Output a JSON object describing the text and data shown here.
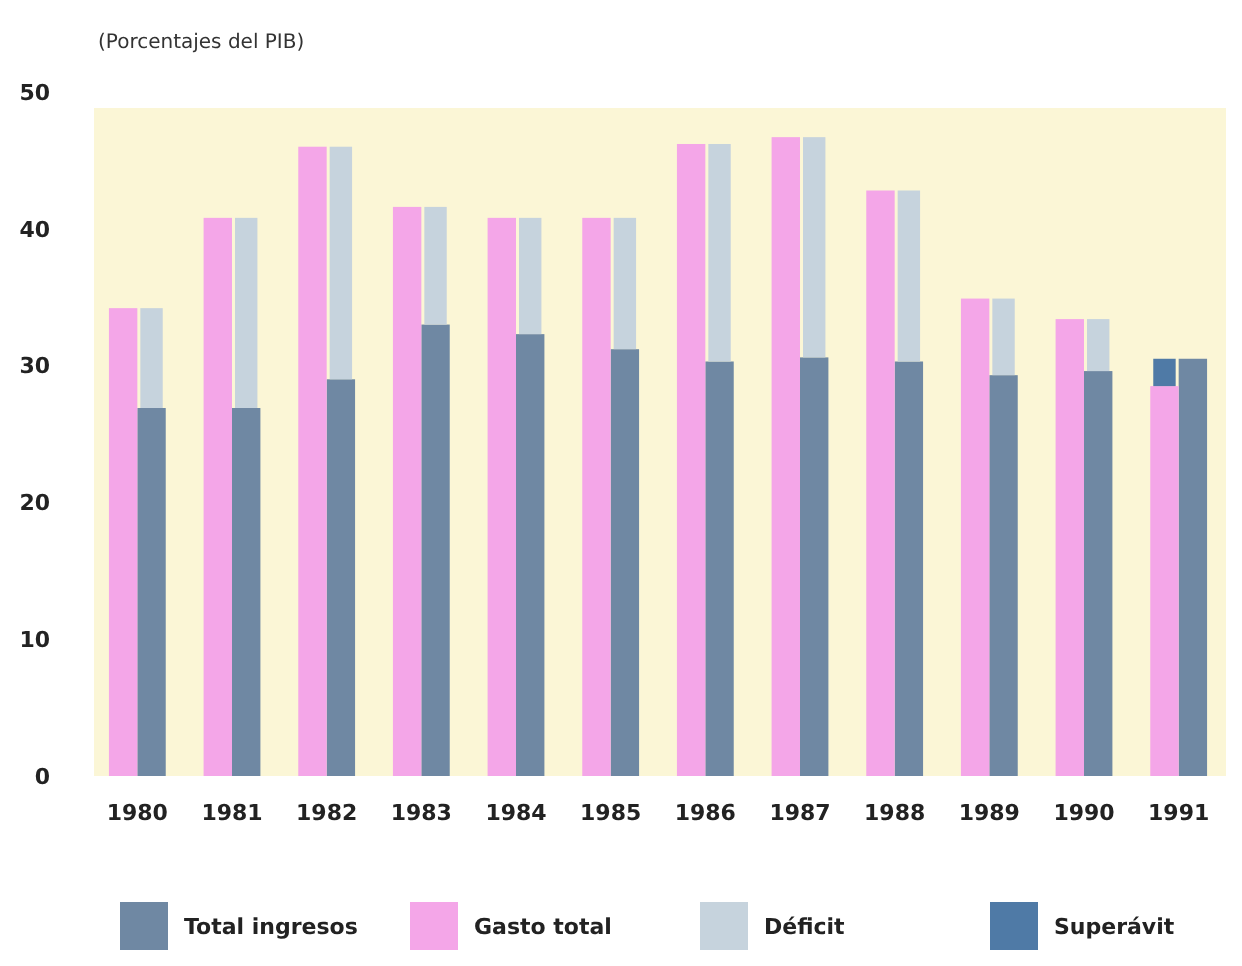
{
  "chart_data": {
    "type": "bar",
    "ylabel": "(Porcentajes del PIB)",
    "categories": [
      "1980",
      "1981",
      "1982",
      "1983",
      "1984",
      "1985",
      "1986",
      "1987",
      "1988",
      "1989",
      "1990",
      "1991"
    ],
    "series": [
      {
        "name": "Total ingresos",
        "color": "#6f88a3",
        "values": [
          26.9,
          26.9,
          29.0,
          33.0,
          32.3,
          31.2,
          30.3,
          30.6,
          30.3,
          29.3,
          29.6,
          30.5
        ]
      },
      {
        "name": "Gasto total",
        "color": "#f4a6e8",
        "values": [
          34.2,
          40.8,
          46.0,
          41.6,
          40.8,
          40.8,
          46.2,
          46.7,
          42.8,
          34.9,
          33.4,
          28.5
        ]
      },
      {
        "name": "Déficit",
        "color": "#c6d3dd",
        "values": [
          7.3,
          13.9,
          17.0,
          8.6,
          8.5,
          9.6,
          15.9,
          16.1,
          12.5,
          5.6,
          3.8,
          null
        ],
        "base": [
          26.9,
          26.9,
          29.0,
          33.0,
          32.3,
          31.2,
          30.3,
          30.6,
          30.3,
          29.3,
          29.6,
          null
        ]
      },
      {
        "name": "Superávit",
        "color": "#4f7aa6",
        "values": [
          null,
          null,
          null,
          null,
          null,
          null,
          null,
          null,
          null,
          null,
          null,
          2.0
        ],
        "base": [
          null,
          null,
          null,
          null,
          null,
          null,
          null,
          null,
          null,
          null,
          null,
          28.5
        ]
      }
    ],
    "ylim": [
      0,
      50
    ],
    "yticks": [
      0,
      10,
      20,
      30,
      40,
      50
    ],
    "grid": false,
    "legend": "bottom"
  }
}
